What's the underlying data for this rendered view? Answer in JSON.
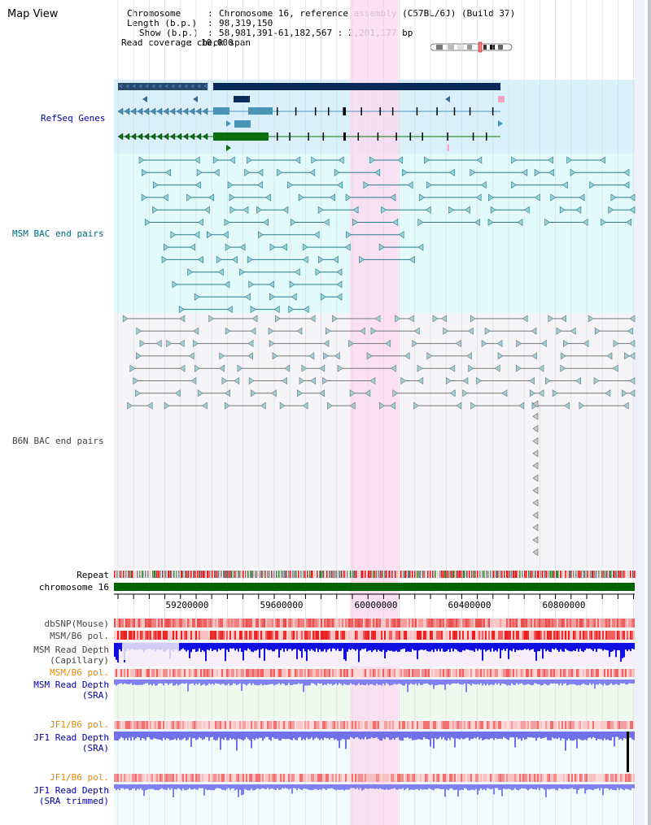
{
  "app": {
    "title": "Map View"
  },
  "info": {
    "chromosome_label": "Chromosome",
    "chromosome_value": "Chromosome 16, reference assembly (C57BL/6J) (Build 37)",
    "length_label": "Length (b.p.)",
    "length_value": "98,319,150",
    "show_label": "Show (b.p.)",
    "show_value": "58,981,391-61,182,567 : 2,201,177 bp",
    "coverage_label": "Read coverage check span",
    "coverage_value": "10,000"
  },
  "tracks": {
    "refseq": "RefSeq Genes",
    "msm_bac": "MSM BAC end pairs",
    "b6n_bac": "B6N BAC end pairs",
    "repeat": "Repeat",
    "chromosome": "chromosome 16",
    "dbsnp": "dbSNP(Mouse)",
    "msm_b6_pol_1": "MSM/B6 pol.",
    "msm_read_depth_cap_1": "MSM Read Depth",
    "msm_read_depth_cap_2": "(Capillary)",
    "msm_b6_pol_2": "MSM/B6 pol.",
    "msm_read_depth_sra_1": "MSM Read Depth",
    "msm_read_depth_sra_2": "(SRA)",
    "jf1_b6_pol_1": "JF1/B6 pol.",
    "jf1_read_depth_sra_1": "JF1 Read Depth",
    "jf1_read_depth_sra_2": "(SRA)",
    "jf1_b6_pol_2": "JF1/B6 pol.",
    "jf1_read_depth_trim_1": "JF1 Read Depth",
    "jf1_read_depth_trim_2": "(SRA trimmed)"
  },
  "axis": {
    "ticks": [
      "59200000",
      "59600000",
      "60000000",
      "60400000",
      "60800000"
    ]
  },
  "colors": {
    "refseq_bg": "#daf0fa",
    "msm_bg": "#e2fafa",
    "b6n_bg": "#f5f5f7",
    "highlight": "#fadcf0",
    "gene_dark": "#0a2a5a",
    "gene_mid": "#4a94b8",
    "gene_green": "#0a6e0a",
    "msm_bac": "#2a7a8a",
    "b6n_bac": "#777777",
    "chromosome": "#006400",
    "label_blue": "#0000aa",
    "label_teal": "#006a80",
    "label_gray": "#444444",
    "label_orange": "#e08a00"
  }
}
